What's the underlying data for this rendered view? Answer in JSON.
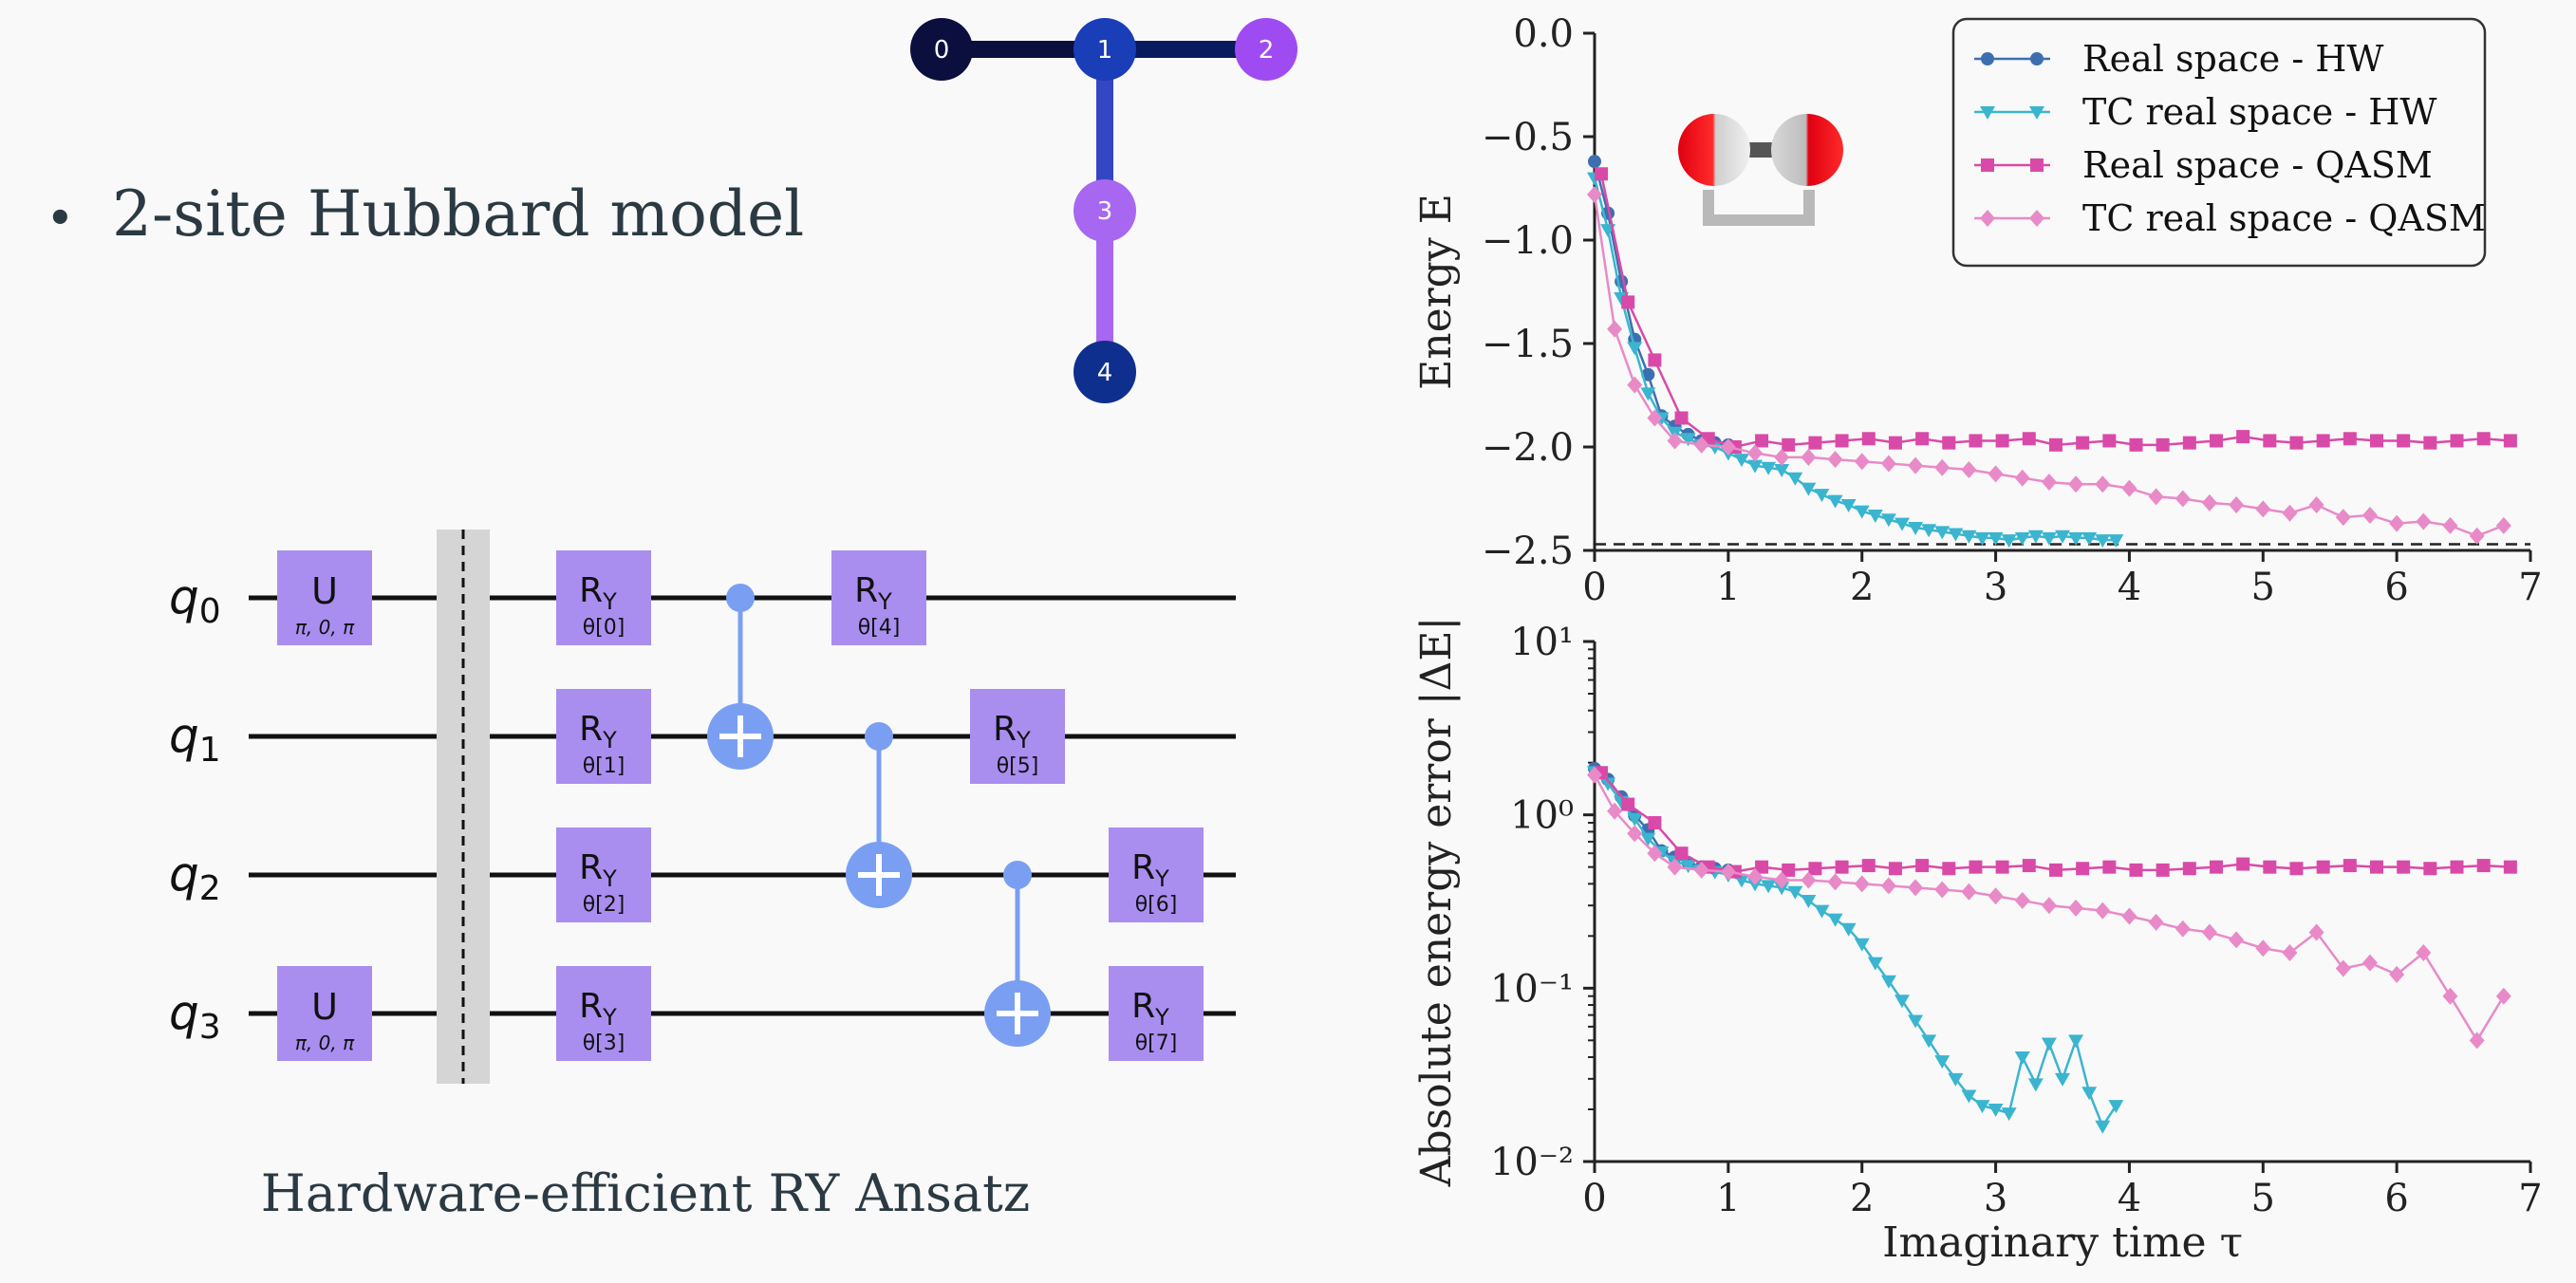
{
  "bullet": {
    "symbol": "•",
    "text": "2-site Hubbard model"
  },
  "coupling_map": {
    "nodes": [
      {
        "label": "0",
        "color": "#0a0f3d"
      },
      {
        "label": "1",
        "color": "#1a3db8"
      },
      {
        "label": "2",
        "color": "#9e4bf2"
      },
      {
        "label": "3",
        "color": "#a867f0"
      },
      {
        "label": "4",
        "color": "#0f2f8f"
      }
    ],
    "edges": [
      {
        "from": "0",
        "to": "1",
        "color": "#0a0f3d"
      },
      {
        "from": "1",
        "to": "2",
        "color": "#0a1a5e"
      },
      {
        "from": "1",
        "to": "3",
        "color": "#3546c4"
      },
      {
        "from": "3",
        "to": "4",
        "color": "#a867f0"
      }
    ]
  },
  "circuit": {
    "caption": "Hardware-efficient RY Ansatz",
    "qubits": [
      "q0",
      "q1",
      "q2",
      "q3"
    ],
    "qubit_prefix": "q",
    "qubit_indices": [
      "0",
      "1",
      "2",
      "3"
    ],
    "u_gates": [
      {
        "qubit": 0,
        "label": "U",
        "params": "π, 0, π"
      },
      {
        "qubit": 3,
        "label": "U",
        "params": "π, 0, π"
      }
    ],
    "ry_gates": [
      {
        "qubit": 0,
        "column": 0,
        "label": "R",
        "sub": "Y",
        "param": "θ[0]"
      },
      {
        "qubit": 1,
        "column": 0,
        "label": "R",
        "sub": "Y",
        "param": "θ[1]"
      },
      {
        "qubit": 2,
        "column": 0,
        "label": "R",
        "sub": "Y",
        "param": "θ[2]"
      },
      {
        "qubit": 3,
        "column": 0,
        "label": "R",
        "sub": "Y",
        "param": "θ[3]"
      },
      {
        "qubit": 0,
        "column": 2,
        "label": "R",
        "sub": "Y",
        "param": "θ[4]"
      },
      {
        "qubit": 1,
        "column": 3,
        "label": "R",
        "sub": "Y",
        "param": "θ[5]"
      },
      {
        "qubit": 2,
        "column": 4,
        "label": "R",
        "sub": "Y",
        "param": "θ[6]"
      },
      {
        "qubit": 3,
        "column": 4,
        "label": "R",
        "sub": "Y",
        "param": "θ[7]"
      }
    ],
    "cnots": [
      {
        "control": 0,
        "target": 1
      },
      {
        "control": 1,
        "target": 2
      },
      {
        "control": 2,
        "target": 3
      }
    ],
    "gate_color": "#a98ef0",
    "cnot_color": "#7a9ff2"
  },
  "chart_data": [
    {
      "type": "line",
      "ylabel": "Energy E",
      "xlim": [
        0,
        7
      ],
      "ylim": [
        -2.5,
        0.0
      ],
      "yticks": [
        "0.0",
        "−0.5",
        "−1.0",
        "−1.5",
        "−2.0",
        "−2.5"
      ],
      "ytick_values": [
        0.0,
        -0.5,
        -1.0,
        -1.5,
        -2.0,
        -2.5
      ],
      "xticks": [
        "0",
        "1",
        "2",
        "3",
        "4",
        "5",
        "6",
        "7"
      ],
      "reference_line": -2.47,
      "legend_position": "top-right",
      "series": [
        {
          "name": "Real space - HW",
          "color": "#3d6fb0",
          "marker": "circle",
          "x": [
            0.0,
            0.1,
            0.2,
            0.3,
            0.4,
            0.5,
            0.6,
            0.7,
            0.8,
            0.9,
            1.0
          ],
          "y": [
            -0.62,
            -0.87,
            -1.2,
            -1.48,
            -1.65,
            -1.85,
            -1.9,
            -1.94,
            -1.97,
            -1.98,
            -1.99
          ]
        },
        {
          "name": "TC real space - HW",
          "color": "#3bb5cf",
          "marker": "triangle-down",
          "x": [
            0.0,
            0.1,
            0.2,
            0.3,
            0.4,
            0.5,
            0.6,
            0.7,
            0.8,
            0.9,
            1.0,
            1.1,
            1.2,
            1.3,
            1.4,
            1.5,
            1.6,
            1.7,
            1.8,
            1.9,
            2.0,
            2.1,
            2.2,
            2.3,
            2.4,
            2.5,
            2.6,
            2.7,
            2.8,
            2.9,
            3.0,
            3.1,
            3.2,
            3.3,
            3.4,
            3.5,
            3.6,
            3.7,
            3.8,
            3.9
          ],
          "y": [
            -0.7,
            -0.95,
            -1.28,
            -1.52,
            -1.74,
            -1.86,
            -1.93,
            -1.96,
            -1.99,
            -2.0,
            -2.03,
            -2.06,
            -2.09,
            -2.1,
            -2.11,
            -2.15,
            -2.2,
            -2.23,
            -2.26,
            -2.28,
            -2.31,
            -2.33,
            -2.35,
            -2.37,
            -2.39,
            -2.4,
            -2.41,
            -2.42,
            -2.43,
            -2.44,
            -2.44,
            -2.45,
            -2.44,
            -2.43,
            -2.44,
            -2.43,
            -2.44,
            -2.44,
            -2.45,
            -2.45
          ]
        },
        {
          "name": "Real space - QASM",
          "color": "#d94aa8",
          "marker": "square",
          "x": [
            0.05,
            0.25,
            0.45,
            0.65,
            0.85,
            1.05,
            1.25,
            1.45,
            1.65,
            1.85,
            2.05,
            2.25,
            2.45,
            2.65,
            2.85,
            3.05,
            3.25,
            3.45,
            3.65,
            3.85,
            4.05,
            4.25,
            4.45,
            4.65,
            4.85,
            5.05,
            5.25,
            5.45,
            5.65,
            5.85,
            6.05,
            6.25,
            6.45,
            6.65,
            6.85
          ],
          "y": [
            -0.68,
            -1.3,
            -1.58,
            -1.86,
            -1.96,
            -2.0,
            -1.97,
            -1.99,
            -1.98,
            -1.97,
            -1.96,
            -1.98,
            -1.96,
            -1.98,
            -1.97,
            -1.97,
            -1.96,
            -1.99,
            -1.98,
            -1.97,
            -1.99,
            -1.99,
            -1.98,
            -1.97,
            -1.95,
            -1.97,
            -1.98,
            -1.97,
            -1.96,
            -1.97,
            -1.97,
            -1.98,
            -1.97,
            -1.96,
            -1.97
          ]
        },
        {
          "name": "TC real space - QASM",
          "color": "#e88ac8",
          "marker": "diamond",
          "x": [
            0.0,
            0.15,
            0.3,
            0.45,
            0.6,
            0.8,
            1.0,
            1.2,
            1.4,
            1.6,
            1.8,
            2.0,
            2.2,
            2.4,
            2.6,
            2.8,
            3.0,
            3.2,
            3.4,
            3.6,
            3.8,
            4.0,
            4.2,
            4.4,
            4.6,
            4.8,
            5.0,
            5.2,
            5.4,
            5.6,
            5.8,
            6.0,
            6.2,
            6.4,
            6.6,
            6.8
          ],
          "y": [
            -0.78,
            -1.43,
            -1.7,
            -1.86,
            -1.97,
            -1.99,
            -2.0,
            -2.03,
            -2.05,
            -2.05,
            -2.06,
            -2.07,
            -2.08,
            -2.09,
            -2.1,
            -2.11,
            -2.13,
            -2.15,
            -2.17,
            -2.18,
            -2.18,
            -2.2,
            -2.24,
            -2.25,
            -2.27,
            -2.28,
            -2.3,
            -2.32,
            -2.28,
            -2.34,
            -2.33,
            -2.37,
            -2.36,
            -2.38,
            -2.43,
            -2.38
          ]
        }
      ]
    },
    {
      "type": "line",
      "ylabel": "Absolute energy error |ΔE|",
      "xlabel": "Imaginary time τ",
      "xlim": [
        0,
        7
      ],
      "ylim": [
        0.01,
        10
      ],
      "yscale": "log",
      "yticks": [
        "10¹",
        "10⁰",
        "10⁻¹",
        "10⁻²"
      ],
      "ytick_values": [
        10,
        1,
        0.1,
        0.01
      ],
      "xticks": [
        "0",
        "1",
        "2",
        "3",
        "4",
        "5",
        "6",
        "7"
      ],
      "series": [
        {
          "name": "Real space - HW",
          "color": "#3d6fb0",
          "marker": "circle",
          "x": [
            0.0,
            0.1,
            0.2,
            0.3,
            0.4,
            0.5,
            0.6,
            0.7,
            0.8,
            0.9,
            1.0
          ],
          "y": [
            1.85,
            1.6,
            1.27,
            0.99,
            0.82,
            0.62,
            0.57,
            0.53,
            0.5,
            0.49,
            0.48
          ]
        },
        {
          "name": "TC real space - HW",
          "color": "#3bb5cf",
          "marker": "triangle-down",
          "x": [
            0.0,
            0.1,
            0.2,
            0.3,
            0.4,
            0.5,
            0.6,
            0.7,
            0.8,
            0.9,
            1.0,
            1.1,
            1.2,
            1.3,
            1.4,
            1.5,
            1.6,
            1.7,
            1.8,
            1.9,
            2.0,
            2.1,
            2.2,
            2.3,
            2.4,
            2.5,
            2.6,
            2.7,
            2.8,
            2.9,
            3.0,
            3.1,
            3.2,
            3.3,
            3.4,
            3.5,
            3.6,
            3.7,
            3.8,
            3.9
          ],
          "y": [
            1.77,
            1.52,
            1.19,
            0.95,
            0.73,
            0.61,
            0.54,
            0.51,
            0.48,
            0.47,
            0.45,
            0.42,
            0.4,
            0.39,
            0.38,
            0.36,
            0.32,
            0.28,
            0.25,
            0.22,
            0.18,
            0.14,
            0.11,
            0.085,
            0.065,
            0.05,
            0.038,
            0.03,
            0.024,
            0.021,
            0.02,
            0.019,
            0.04,
            0.028,
            0.048,
            0.03,
            0.05,
            0.025,
            0.016,
            0.021
          ]
        },
        {
          "name": "Real space - QASM",
          "color": "#d94aa8",
          "marker": "square",
          "x": [
            0.05,
            0.25,
            0.45,
            0.65,
            0.85,
            1.05,
            1.25,
            1.45,
            1.65,
            1.85,
            2.05,
            2.25,
            2.45,
            2.65,
            2.85,
            3.05,
            3.25,
            3.45,
            3.65,
            3.85,
            4.05,
            4.25,
            4.45,
            4.65,
            4.85,
            5.05,
            5.25,
            5.45,
            5.65,
            5.85,
            6.05,
            6.25,
            6.45,
            6.65,
            6.85
          ],
          "y": [
            1.75,
            1.15,
            0.9,
            0.6,
            0.5,
            0.47,
            0.5,
            0.48,
            0.49,
            0.5,
            0.51,
            0.49,
            0.51,
            0.49,
            0.5,
            0.5,
            0.51,
            0.48,
            0.49,
            0.5,
            0.48,
            0.48,
            0.49,
            0.5,
            0.52,
            0.5,
            0.49,
            0.5,
            0.51,
            0.5,
            0.5,
            0.49,
            0.5,
            0.51,
            0.5
          ]
        },
        {
          "name": "TC real space - QASM",
          "color": "#e88ac8",
          "marker": "diamond",
          "x": [
            0.0,
            0.15,
            0.3,
            0.45,
            0.6,
            0.8,
            1.0,
            1.2,
            1.4,
            1.6,
            1.8,
            2.0,
            2.2,
            2.4,
            2.6,
            2.8,
            3.0,
            3.2,
            3.4,
            3.6,
            3.8,
            4.0,
            4.2,
            4.4,
            4.6,
            4.8,
            5.0,
            5.2,
            5.4,
            5.6,
            5.8,
            6.0,
            6.2,
            6.4,
            6.6,
            6.8
          ],
          "y": [
            1.7,
            1.05,
            0.78,
            0.6,
            0.5,
            0.48,
            0.47,
            0.44,
            0.42,
            0.42,
            0.41,
            0.4,
            0.39,
            0.38,
            0.37,
            0.36,
            0.34,
            0.32,
            0.3,
            0.29,
            0.28,
            0.26,
            0.24,
            0.22,
            0.21,
            0.19,
            0.17,
            0.16,
            0.21,
            0.13,
            0.14,
            0.12,
            0.16,
            0.09,
            0.05,
            0.09
          ]
        }
      ]
    }
  ]
}
